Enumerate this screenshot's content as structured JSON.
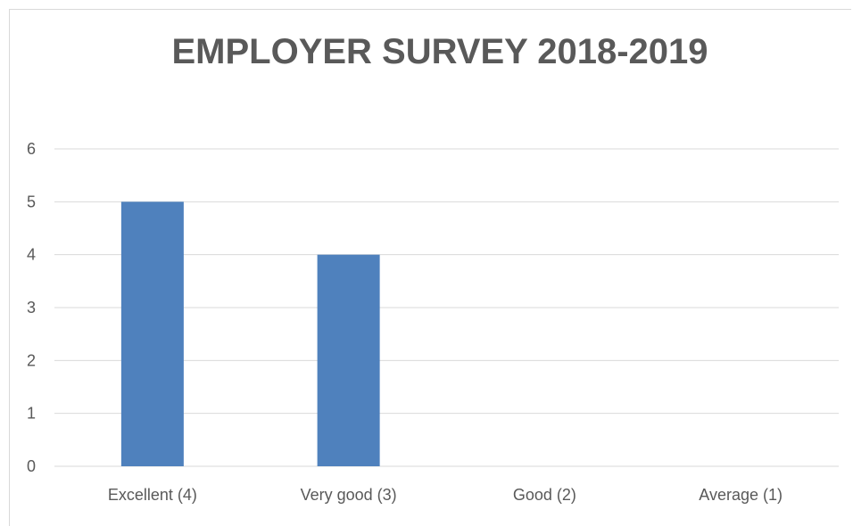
{
  "chart_data": {
    "type": "bar",
    "title": "EMPLOYER SURVEY 2018-2019",
    "xlabel": "",
    "ylabel": "",
    "categories": [
      "Excellent (4)",
      "Very good (3)",
      "Good (2)",
      "Average (1)"
    ],
    "values": [
      5,
      4,
      0,
      0
    ],
    "ylim": [
      0,
      6
    ],
    "yticks": [
      "0",
      "1",
      "2",
      "3",
      "4",
      "5",
      "6"
    ],
    "grid": true,
    "legend": "none",
    "bar_color": "#4f81bd",
    "grid_color": "#d9d9d9",
    "text_color": "#595959"
  }
}
